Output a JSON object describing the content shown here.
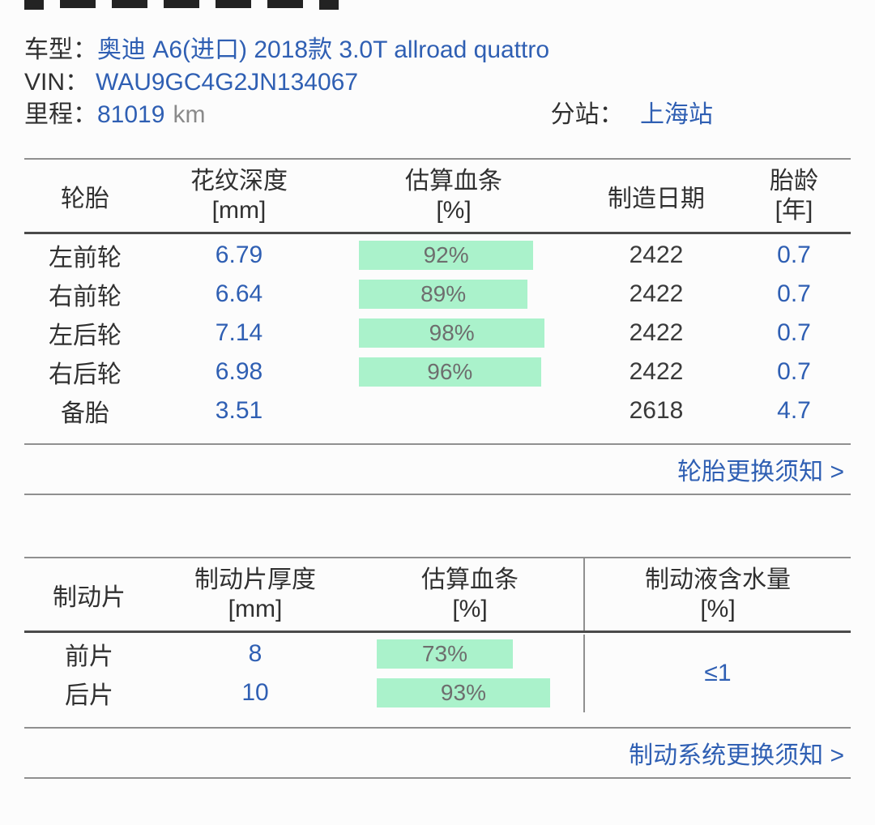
{
  "colors": {
    "accent_blue": "#2f5fb3",
    "bar_green": "#aaf2cb",
    "text_dark": "#303030",
    "text_gray": "#8a8a8a",
    "line_gray": "#909090"
  },
  "vehicle_info": {
    "model_label": "车型：",
    "model_value": "奥迪 A6(进口) 2018款 3.0T allroad quattro",
    "vin_label": "VIN：",
    "vin_value": "WAU9GC4G2JN134067",
    "mileage_label": "里程：",
    "mileage_value": "81019",
    "mileage_unit": "km",
    "station_label": "分站：",
    "station_value": "上海站"
  },
  "tire_table": {
    "headers": {
      "tire": "轮胎",
      "depth_line1": "花纹深度",
      "depth_line2": "[mm]",
      "health_line1": "估算血条",
      "health_line2": "[%]",
      "date": "制造日期",
      "age_line1": "胎龄",
      "age_line2": "[年]"
    },
    "rows": [
      {
        "name": "左前轮",
        "depth": "6.79",
        "health": 92,
        "health_label": "92%",
        "date": "2422",
        "age": "0.7"
      },
      {
        "name": "右前轮",
        "depth": "6.64",
        "health": 89,
        "health_label": "89%",
        "date": "2422",
        "age": "0.7"
      },
      {
        "name": "左后轮",
        "depth": "7.14",
        "health": 98,
        "health_label": "98%",
        "date": "2422",
        "age": "0.7"
      },
      {
        "name": "右后轮",
        "depth": "6.98",
        "health": 96,
        "health_label": "96%",
        "date": "2422",
        "age": "0.7"
      },
      {
        "name": "备胎",
        "depth": "3.51",
        "health": null,
        "health_label": "",
        "date": "2618",
        "age": "4.7"
      }
    ],
    "link": "轮胎更换须知 >"
  },
  "brake_table": {
    "headers": {
      "pad": "制动片",
      "thickness_line1": "制动片厚度",
      "thickness_line2": "[mm]",
      "health_line1": "估算血条",
      "health_line2": "[%]",
      "fluid_line1": "制动液含水量",
      "fluid_line2": "[%]"
    },
    "rows": [
      {
        "name": "前片",
        "thickness": "8",
        "health": 73,
        "health_label": "73%"
      },
      {
        "name": "后片",
        "thickness": "10",
        "health": 93,
        "health_label": "93%"
      }
    ],
    "fluid_value": "≤1",
    "link": "制动系统更换须知 >"
  }
}
